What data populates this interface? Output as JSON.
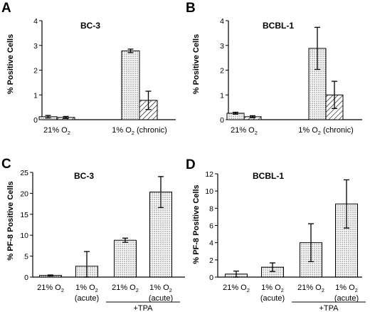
{
  "panels": [
    {
      "letter": "A",
      "chart_data": {
        "type": "bar",
        "title": "BC-3",
        "ylabel": "% Positive Cells",
        "ylim": [
          0,
          4
        ],
        "yticks": [
          0,
          1,
          2,
          3,
          4
        ],
        "categories": [
          {
            "line1": "21% O",
            "sub": "2",
            "line1b": ""
          },
          {
            "line1": "1% O",
            "sub": "2",
            "line1b": " (chronic)"
          }
        ],
        "bracket": null,
        "series": [
          {
            "pattern": "dotted",
            "values": [
              0.12,
              2.78
            ],
            "errors": [
              0.05,
              0.07
            ]
          },
          {
            "pattern": "hatched",
            "values": [
              0.09,
              0.78
            ],
            "errors": [
              0.04,
              0.37
            ]
          }
        ]
      }
    },
    {
      "letter": "B",
      "chart_data": {
        "type": "bar",
        "title": "BCBL-1",
        "ylabel": "% Positive Cells",
        "ylim": [
          0,
          4
        ],
        "yticks": [
          0,
          1,
          2,
          3,
          4
        ],
        "categories": [
          {
            "line1": "21% O",
            "sub": "2",
            "line1b": ""
          },
          {
            "line1": "1% O",
            "sub": "2",
            "line1b": " (chronic)"
          }
        ],
        "bracket": null,
        "series": [
          {
            "pattern": "dotted",
            "values": [
              0.26,
              2.88
            ],
            "errors": [
              0.04,
              0.85
            ]
          },
          {
            "pattern": "hatched",
            "values": [
              0.12,
              1.0
            ],
            "errors": [
              0.04,
              0.55
            ]
          }
        ]
      }
    },
    {
      "letter": "C",
      "chart_data": {
        "type": "bar",
        "title": "BC-3",
        "ylabel": "% PF-8 Positive Cells",
        "ylim": [
          0,
          25
        ],
        "yticks": [
          0,
          5,
          10,
          15,
          20,
          25
        ],
        "categories": [
          {
            "line1": "21% O",
            "sub": "2",
            "line1b": ""
          },
          {
            "line1": "1% O",
            "sub": "2",
            "line1b": "",
            "line2": "(acute)"
          },
          {
            "line1": "21% O",
            "sub": "2",
            "line1b": ""
          },
          {
            "line1": "1% O",
            "sub": "2",
            "line1b": "",
            "line2": "(acute)"
          }
        ],
        "bracket": {
          "label": "+TPA",
          "from": 2,
          "to": 3
        },
        "series": [
          {
            "pattern": "dotted",
            "values": [
              0.4,
              2.6,
              8.8,
              20.3
            ],
            "errors": [
              0.1,
              3.5,
              0.5,
              3.7
            ]
          }
        ]
      }
    },
    {
      "letter": "D",
      "chart_data": {
        "type": "bar",
        "title": "BCBL-1",
        "ylabel": "% PF-8 Positive Cells",
        "ylim": [
          0,
          12
        ],
        "yticks": [
          0,
          2,
          4,
          6,
          8,
          10,
          12
        ],
        "categories": [
          {
            "line1": "21% O",
            "sub": "2",
            "line1b": ""
          },
          {
            "line1": "1% O",
            "sub": "2",
            "line1b": "",
            "line2": "(acute)"
          },
          {
            "line1": "21% O",
            "sub": "2",
            "line1b": ""
          },
          {
            "line1": "1% O",
            "sub": "2",
            "line1b": "",
            "line2": "(acute)"
          }
        ],
        "bracket": {
          "label": "+TPA",
          "from": 2,
          "to": 3
        },
        "series": [
          {
            "pattern": "dotted",
            "values": [
              0.35,
              1.15,
              4.0,
              8.5
            ],
            "errors": [
              0.35,
              0.5,
              2.2,
              2.8
            ]
          }
        ]
      }
    }
  ]
}
